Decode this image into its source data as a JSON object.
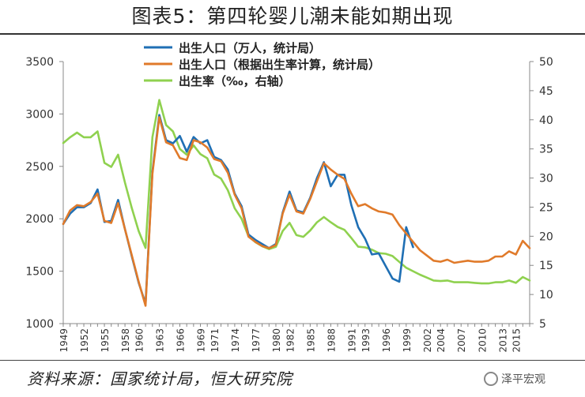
{
  "figure": {
    "title": "图表5：第四轮婴儿潮未能如期出现",
    "source": "资料来源：国家统计局，恒大研究院",
    "watermark": "泽平宏观"
  },
  "colors": {
    "series1": "#1f6fb4",
    "series2": "#e07a2a",
    "series3": "#8fd14f"
  },
  "icons": [
    "wechat-watermark-icon"
  ],
  "chart_data": {
    "type": "line",
    "title": "图表5：第四轮婴儿潮未能如期出现",
    "xlabel": "",
    "ylabel": "",
    "x_tick_labels": [
      "1949",
      "1952",
      "1955",
      "1958",
      "1960",
      "1963",
      "1966",
      "1969",
      "1971",
      "1974",
      "1977",
      "1980",
      "1982",
      "1985",
      "1988",
      "1991",
      "1993",
      "1996",
      "1999",
      "2002",
      "2004",
      "2007",
      "2010",
      "2013",
      "2015"
    ],
    "ylim_left": [
      1000,
      3500
    ],
    "yticks_left": [
      1000,
      1500,
      2000,
      2500,
      3000,
      3500
    ],
    "ylim_right": [
      5,
      50
    ],
    "yticks_right": [
      5,
      10,
      15,
      20,
      25,
      30,
      35,
      40,
      45,
      50
    ],
    "legend_position": "top-center",
    "grid": false,
    "series": [
      {
        "name": "出生人口（万人，统计局）",
        "axis": "left",
        "x": [
          1949,
          1950,
          1951,
          1952,
          1953,
          1954,
          1955,
          1956,
          1957,
          1958,
          1959,
          1960,
          1961,
          1962,
          1963,
          1964,
          1965,
          1966,
          1967,
          1968,
          1969,
          1970,
          1971,
          1972,
          1973,
          1974,
          1975,
          1976,
          1977,
          1978,
          1979,
          1980,
          1981,
          1982,
          1983,
          1984,
          1985,
          1986,
          1987,
          1988,
          1989,
          1990,
          1991,
          1992,
          1993,
          1994,
          1995,
          1996,
          1997,
          1998,
          1999,
          2000
        ],
        "values": [
          1950,
          2050,
          2110,
          2110,
          2150,
          2280,
          1970,
          1980,
          2180,
          1900,
          1640,
          1390,
          1190,
          2450,
          2990,
          2750,
          2720,
          2790,
          2640,
          2780,
          2720,
          2750,
          2590,
          2560,
          2470,
          2240,
          2120,
          1850,
          1800,
          1760,
          1720,
          1760,
          2060,
          2260,
          2080,
          2060,
          2200,
          2390,
          2540,
          2310,
          2420,
          2420,
          2130,
          1920,
          1810,
          1660,
          1670,
          1550,
          1430,
          1400,
          1920,
          1730
        ]
      },
      {
        "name": "出生人口（根据出生率计算，统计局）",
        "axis": "left",
        "x": [
          1949,
          1950,
          1951,
          1952,
          1953,
          1954,
          1955,
          1956,
          1957,
          1958,
          1959,
          1960,
          1961,
          1962,
          1963,
          1964,
          1965,
          1966,
          1967,
          1968,
          1969,
          1970,
          1971,
          1972,
          1973,
          1974,
          1975,
          1976,
          1977,
          1978,
          1979,
          1980,
          1981,
          1982,
          1983,
          1984,
          1985,
          1986,
          1987,
          1988,
          1989,
          1990,
          1991,
          1992,
          1993,
          1994,
          1995,
          1996,
          1997,
          1998,
          1999,
          2000,
          2001,
          2002,
          2003,
          2004,
          2005,
          2006,
          2007,
          2008,
          2009,
          2010,
          2011,
          2012,
          2013,
          2014,
          2015,
          2016,
          2017
        ],
        "values": [
          1950,
          2080,
          2130,
          2120,
          2160,
          2240,
          1980,
          1960,
          2150,
          1900,
          1650,
          1400,
          1170,
          2430,
          2970,
          2730,
          2700,
          2580,
          2560,
          2750,
          2730,
          2680,
          2570,
          2550,
          2440,
          2230,
          2100,
          1830,
          1780,
          1740,
          1720,
          1750,
          2050,
          2230,
          2070,
          2050,
          2190,
          2360,
          2530,
          2470,
          2420,
          2380,
          2240,
          2120,
          2140,
          2100,
          2070,
          2060,
          2040,
          1940,
          1860,
          1780,
          1700,
          1650,
          1600,
          1590,
          1610,
          1580,
          1590,
          1600,
          1590,
          1590,
          1600,
          1640,
          1640,
          1690,
          1660,
          1790,
          1720
        ]
      },
      {
        "name": "出生率（‰，右轴）",
        "axis": "right",
        "x": [
          1949,
          1950,
          1951,
          1952,
          1953,
          1954,
          1955,
          1956,
          1957,
          1958,
          1959,
          1960,
          1961,
          1962,
          1963,
          1964,
          1965,
          1966,
          1967,
          1968,
          1969,
          1970,
          1971,
          1972,
          1973,
          1974,
          1975,
          1976,
          1977,
          1978,
          1979,
          1980,
          1981,
          1982,
          1983,
          1984,
          1985,
          1986,
          1987,
          1988,
          1989,
          1990,
          1991,
          1992,
          1993,
          1994,
          1995,
          1996,
          1997,
          1998,
          1999,
          2000,
          2001,
          2002,
          2003,
          2004,
          2005,
          2006,
          2007,
          2008,
          2009,
          2010,
          2011,
          2012,
          2013,
          2014,
          2015,
          2016,
          2017
        ],
        "values": [
          36,
          37,
          37.8,
          37,
          37,
          38,
          32.6,
          31.9,
          34,
          29.2,
          24.8,
          20.9,
          18,
          37,
          43.4,
          39.1,
          38,
          35,
          34,
          35.6,
          34.1,
          33.4,
          30.6,
          29.9,
          27.9,
          24.8,
          23,
          20,
          19,
          18.3,
          17.8,
          18.2,
          20.9,
          22.3,
          20.2,
          19.9,
          21,
          22.4,
          23.3,
          22.4,
          21.6,
          21.1,
          19.7,
          18.2,
          18.1,
          17.7,
          17.1,
          17,
          16.6,
          15.6,
          14.6,
          14,
          13.4,
          12.9,
          12.4,
          12.3,
          12.4,
          12.1,
          12.1,
          12.1,
          12,
          11.9,
          11.9,
          12.1,
          12.1,
          12.4,
          12,
          13,
          12.4
        ]
      }
    ]
  }
}
